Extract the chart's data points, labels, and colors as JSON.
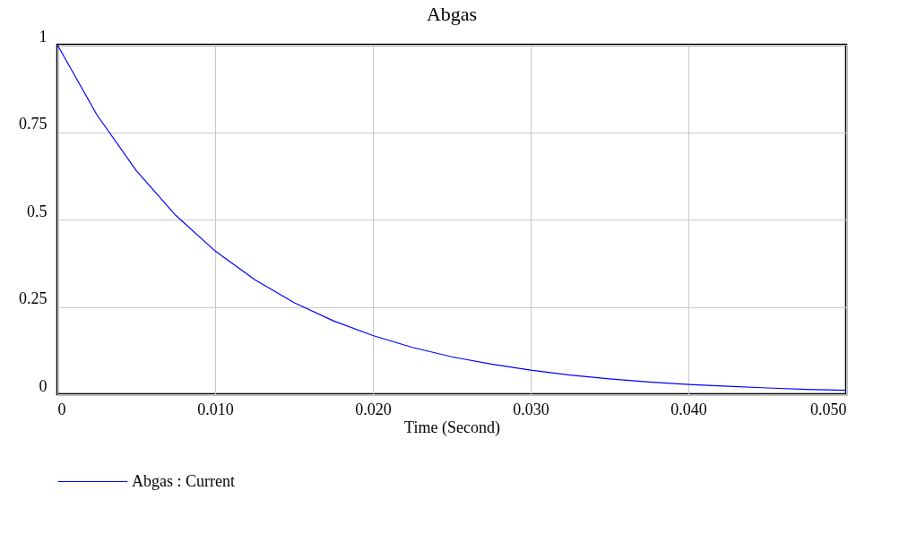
{
  "chart_data": {
    "type": "line",
    "title": "Abgas",
    "xlabel": "Time (Second)",
    "x": [
      0,
      0.0025,
      0.005,
      0.0075,
      0.01,
      0.0125,
      0.015,
      0.0175,
      0.02,
      0.0225,
      0.025,
      0.0275,
      0.03,
      0.0325,
      0.035,
      0.0375,
      0.04,
      0.0425,
      0.045,
      0.0475,
      0.05
    ],
    "series": [
      {
        "name": "Abgas : Current",
        "color": "#0000ff",
        "values": [
          1,
          0.8,
          0.64,
          0.512,
          0.41,
          0.328,
          0.262,
          0.21,
          0.168,
          0.134,
          0.107,
          0.086,
          0.069,
          0.055,
          0.044,
          0.035,
          0.028,
          0.023,
          0.018,
          0.014,
          0.011
        ]
      }
    ],
    "xlim": [
      0,
      0.05
    ],
    "xticks": [
      0,
      {
        "value": 0.01,
        "label": "0.010"
      },
      {
        "value": 0.02,
        "label": "0.020"
      },
      {
        "value": 0.03,
        "label": "0.030"
      },
      {
        "value": 0.04,
        "label": "0.040"
      },
      {
        "value": 0.05,
        "label": "0.050"
      }
    ],
    "ylim": [
      0,
      1
    ],
    "yticks": [
      0,
      0.25,
      0.5,
      0.75,
      1
    ],
    "grid": true,
    "legend": "bottom",
    "marker": "none",
    "line_style": "solid"
  }
}
